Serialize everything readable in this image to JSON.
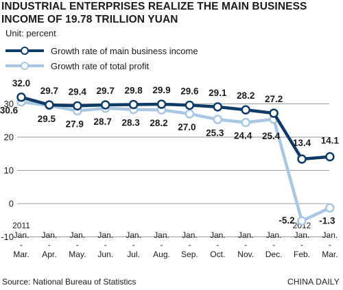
{
  "title": "INDUSTRIAL ENTERPRISES REALIZE THE MAIN BUSINESS INCOME OF 19.78 TRILLION YUAN",
  "unit": "Unit: percent",
  "source": "Source: National Bureau of Statistics",
  "credit": "CHINA DAILY",
  "colors": {
    "income": "#0e3a66",
    "profit": "#a9c6e3",
    "grid": "#9a9a9a"
  },
  "chart_data": {
    "type": "line",
    "categories": [
      [
        "2011",
        "Jan.",
        "-",
        "Mar."
      ],
      [
        "Jan.",
        "-",
        "Apr."
      ],
      [
        "Jan.",
        "-",
        "May."
      ],
      [
        "Jan.",
        "-",
        "Jun."
      ],
      [
        "Jan.",
        "-",
        "Jul."
      ],
      [
        "Jan.",
        "-",
        "Aug."
      ],
      [
        "Jan.",
        "-",
        "Sep."
      ],
      [
        "Jan.",
        "-",
        "Oct."
      ],
      [
        "Jan.",
        "-",
        "Nov."
      ],
      [
        "Jan.",
        "-",
        "Dec."
      ],
      [
        "2012",
        "Jan.",
        "-",
        "Feb."
      ],
      [
        "Jan.",
        "-",
        "Mar."
      ]
    ],
    "series": [
      {
        "name": "Growth rate of main business income",
        "values": [
          32.0,
          29.7,
          29.4,
          29.7,
          29.8,
          29.9,
          29.6,
          29.1,
          28.2,
          27.2,
          13.4,
          14.1
        ],
        "labels": [
          "32.0",
          "29.7",
          "29.4",
          "29.7",
          "29.8",
          "29.9",
          "29.6",
          "29.1",
          "28.2",
          "27.2",
          "13.4",
          "14.1"
        ]
      },
      {
        "name": "Growth rate of total profit",
        "values": [
          30.6,
          29.5,
          27.9,
          28.7,
          28.3,
          28.2,
          27.0,
          25.3,
          24.4,
          25.4,
          -5.2,
          -1.3
        ],
        "labels": [
          "30.6",
          "29.5",
          "27.9",
          "28.7",
          "28.3",
          "28.2",
          "27.0",
          "25.3",
          "24.4",
          "25.4",
          "-5.2",
          "-1.3"
        ]
      }
    ],
    "yticks": [
      "30",
      "20",
      "10",
      "0",
      "-10"
    ],
    "ylim": [
      -10,
      32
    ],
    "grid": true,
    "legend": "top-left"
  }
}
